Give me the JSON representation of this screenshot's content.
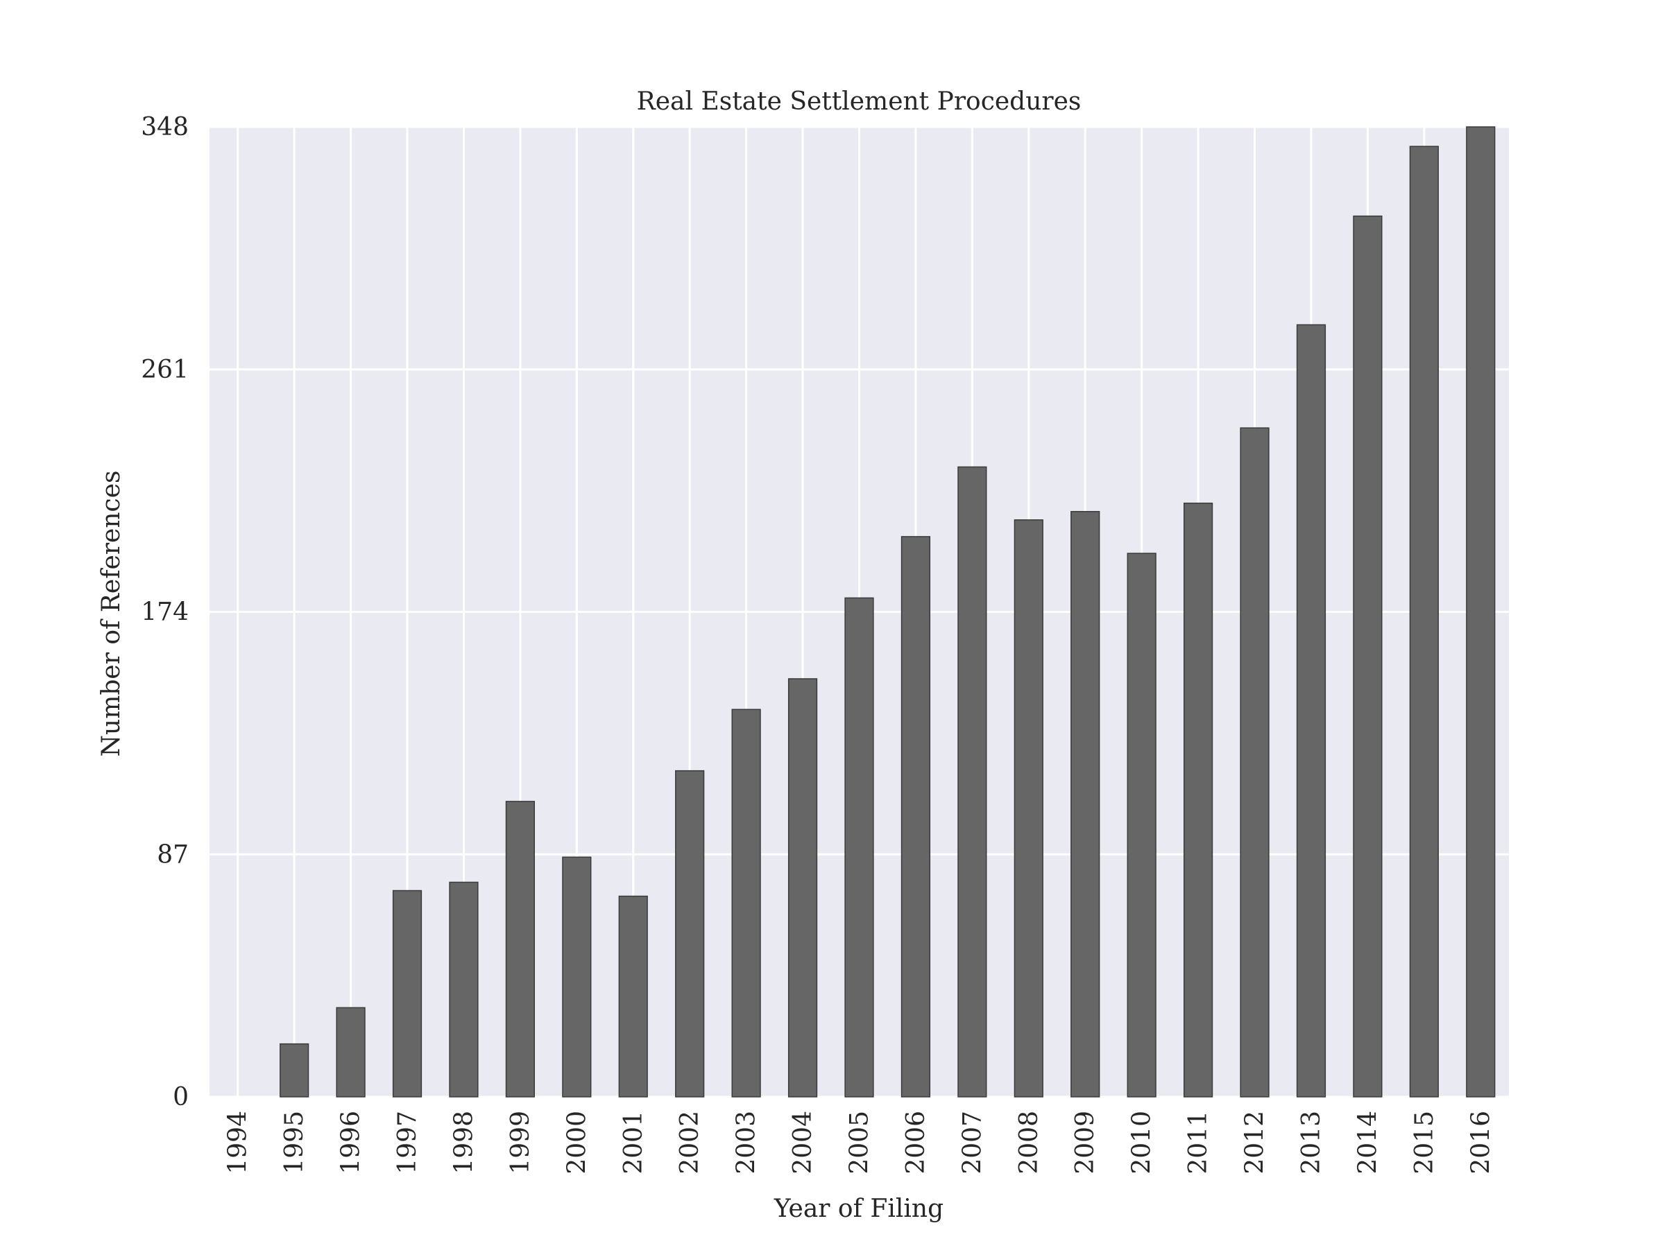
{
  "chart_data": {
    "type": "bar",
    "title": "Real Estate Settlement Procedures",
    "xlabel": "Year of Filing",
    "ylabel": "Number of References",
    "categories": [
      "1994",
      "1995",
      "1996",
      "1997",
      "1998",
      "1999",
      "2000",
      "2001",
      "2002",
      "2003",
      "2004",
      "2005",
      "2006",
      "2007",
      "2008",
      "2009",
      "2010",
      "2011",
      "2012",
      "2013",
      "2014",
      "2015",
      "2016"
    ],
    "values": [
      0,
      19,
      32,
      74,
      77,
      106,
      86,
      72,
      117,
      139,
      150,
      179,
      201,
      226,
      207,
      210,
      195,
      213,
      240,
      277,
      316,
      341,
      348
    ],
    "yticks": [
      0,
      87,
      174,
      261,
      348
    ],
    "ylim": [
      0,
      348
    ],
    "grid": true,
    "colors": {
      "background": "#EAEAF2",
      "grid": "#FFFFFF",
      "bar": "#666666",
      "bar_edge": "#3a3a3a",
      "text": "#262626"
    }
  }
}
